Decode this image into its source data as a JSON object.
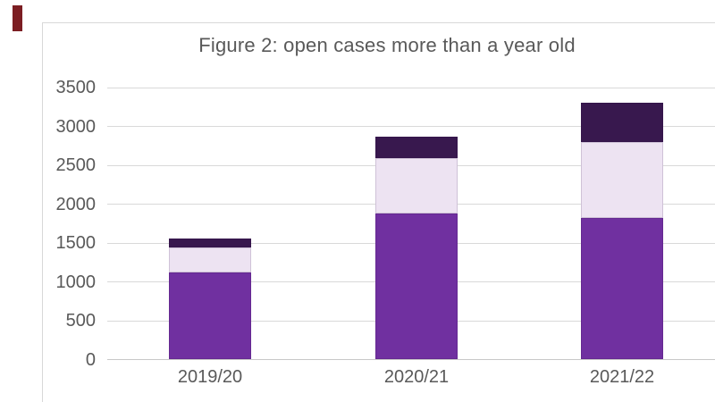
{
  "page": {
    "background_color": "#ffffff",
    "corner_mark_color": "#7C1E23"
  },
  "chart": {
    "title": "Figure 2: open cases more than a year old",
    "text_color": "#595959",
    "grid_color": "#D9D9D9",
    "axis_line_color": "#C8C8C8",
    "border_color": "#D8D8D8"
  },
  "chart_data": {
    "type": "bar",
    "stacked": true,
    "title": "Figure 2: open cases more than a year old",
    "categories": [
      "2019/20",
      "2020/21",
      "2021/22"
    ],
    "series": [
      {
        "name": "bottom segment (purple)",
        "color": "#7030A0",
        "values": [
          1120,
          1880,
          1820
        ]
      },
      {
        "name": "middle segment (pale lavender)",
        "color": "#EDE3F2",
        "values": [
          320,
          710,
          980
        ]
      },
      {
        "name": "top segment (dark purple)",
        "color": "#38184E",
        "values": [
          120,
          280,
          500
        ]
      }
    ],
    "totals": [
      1560,
      2870,
      3300
    ],
    "xlabel": "",
    "ylabel": "",
    "ylim": [
      0,
      3500
    ],
    "yticks": [
      0,
      500,
      1000,
      1500,
      2000,
      2500,
      3000,
      3500
    ],
    "ytick_labels": [
      "0",
      "500",
      "1000",
      "1500",
      "2000",
      "2500",
      "3000",
      "3500"
    ],
    "legend": "none",
    "grid": "horizontal"
  }
}
